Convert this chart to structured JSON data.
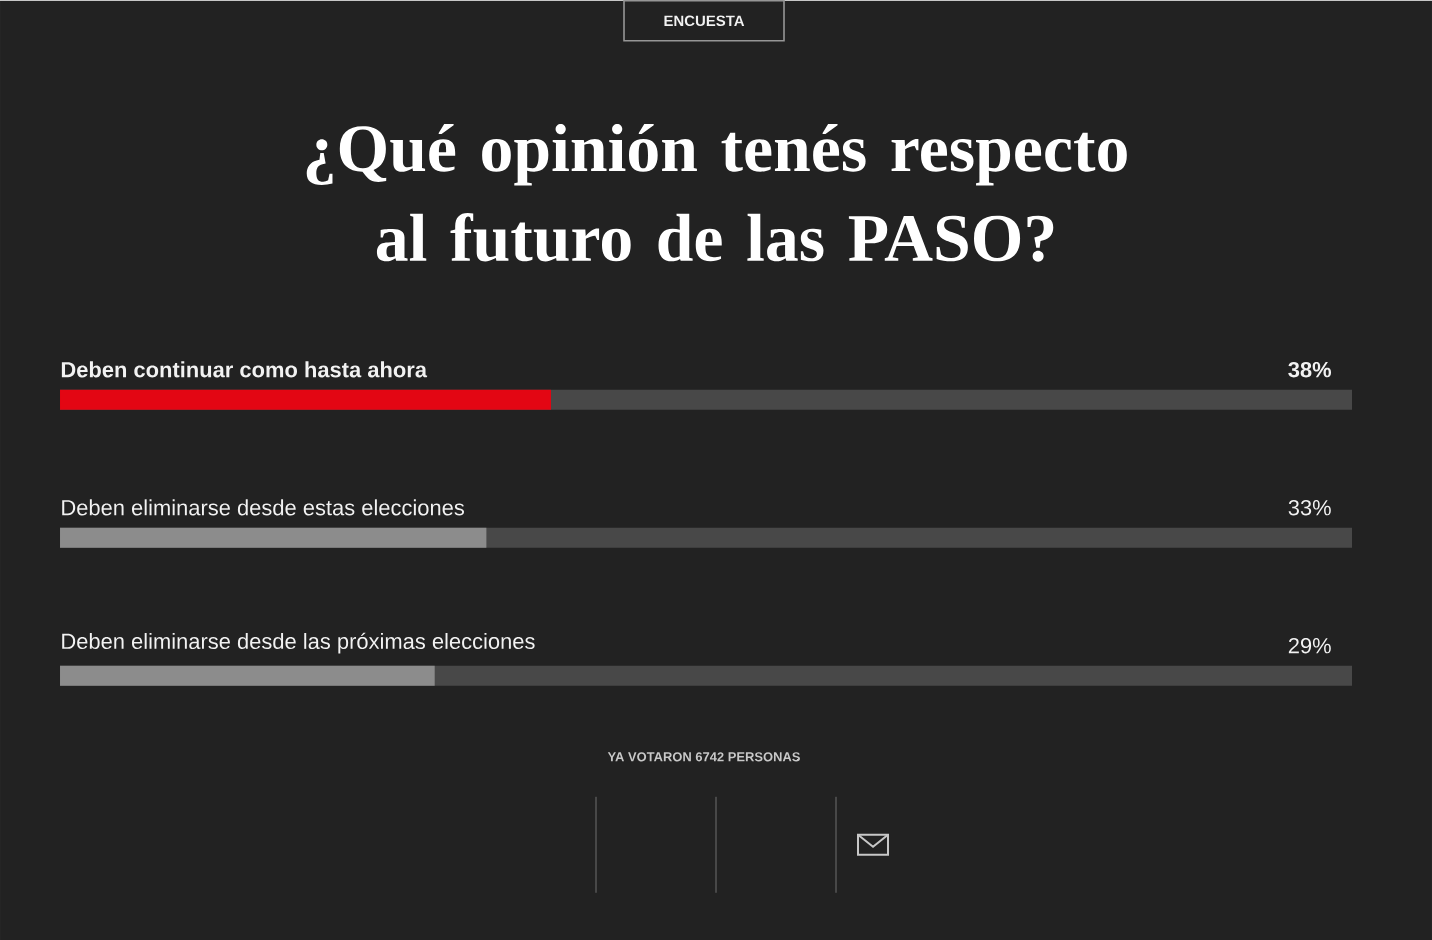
{
  "chart_data": {
    "type": "bar",
    "orientation": "horizontal",
    "title": "¿Qué opinión tenés respecto al futuro de las PASO?",
    "categories": [
      "**Deben continuar como hasta ahora**",
      "Deben eliminarse desde estas elecciones",
      "Deben eliminarse desde las próximas elecciones"
    ],
    "values": [
      38,
      33,
      29
    ],
    "colors": [
      "#e30613",
      "#8c8c8c",
      "#8c8c8c"
    ],
    "value_labels": [
      "**38%**",
      "33%",
      "29%"
    ],
    "xlim": [
      0,
      100
    ],
    "annotations": [
      "ENCUESTA",
      "YA VOTARON 6742 PERSONAS"
    ]
  }
}
